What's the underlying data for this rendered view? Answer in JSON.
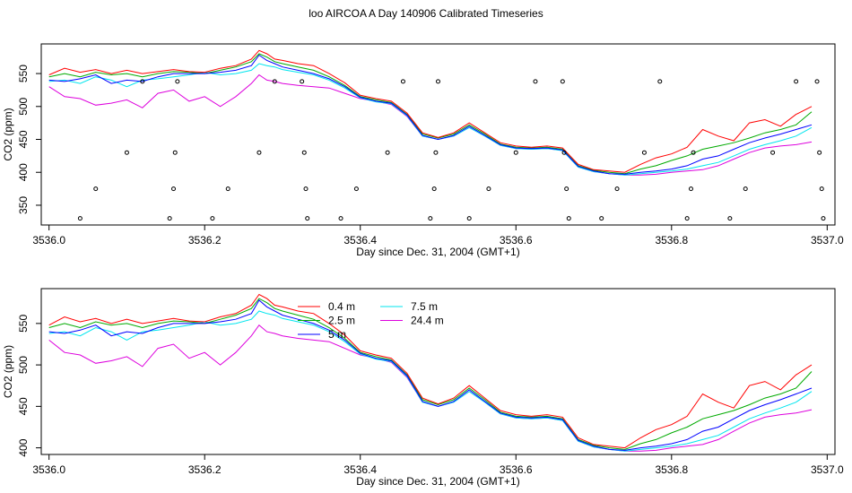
{
  "figure": {
    "title": "loo AIRCOA A  Day 140906  Calibrated Timeseries"
  },
  "colors": {
    "0.4 m": "#ff0000",
    "2.5 m": "#00aa00",
    "5 m": "#0000ff",
    "7.5 m": "#00e5ee",
    "24.4 m": "#dd00dd"
  },
  "chart_data": [
    {
      "type": "line",
      "xlabel": "Day since Dec. 31, 2004 (GMT+1)",
      "ylabel": "CO2 (ppm)",
      "xlim": [
        3535.99,
        3537.01
      ],
      "ylim": [
        320,
        595
      ],
      "xticks": [
        3536.0,
        3536.2,
        3536.4,
        3536.6,
        3536.8,
        3537.0
      ],
      "xtick_labels": [
        "3536.0",
        "3536.2",
        "3536.4",
        "3536.6",
        "3536.8",
        "3537.0"
      ],
      "yticks": [
        350,
        400,
        450,
        500,
        550
      ],
      "ytick_labels": [
        "350",
        "400",
        "450",
        "500",
        "550"
      ],
      "x": [
        3536.0,
        3536.02,
        3536.04,
        3536.06,
        3536.08,
        3536.1,
        3536.12,
        3536.14,
        3536.16,
        3536.18,
        3536.2,
        3536.22,
        3536.24,
        3536.26,
        3536.27,
        3536.28,
        3536.29,
        3536.3,
        3536.32,
        3536.34,
        3536.36,
        3536.38,
        3536.4,
        3536.42,
        3536.44,
        3536.46,
        3536.48,
        3536.5,
        3536.52,
        3536.54,
        3536.56,
        3536.58,
        3536.6,
        3536.62,
        3536.64,
        3536.66,
        3536.68,
        3536.7,
        3536.72,
        3536.74,
        3536.76,
        3536.78,
        3536.8,
        3536.82,
        3536.84,
        3536.86,
        3536.88,
        3536.9,
        3536.92,
        3536.94,
        3536.96,
        3536.98
      ],
      "series": [
        {
          "values": [
            548,
            558,
            552,
            556,
            550,
            555,
            550,
            553,
            556,
            553,
            552,
            558,
            562,
            572,
            585,
            580,
            572,
            570,
            565,
            562,
            550,
            536,
            517,
            512,
            508,
            490,
            460,
            453,
            460,
            475,
            460,
            445,
            440,
            438,
            440,
            437,
            412,
            404,
            402,
            400,
            412,
            422,
            428,
            438,
            465,
            455,
            448,
            475,
            480,
            470,
            488,
            500
          ]
        },
        {
          "values": [
            545,
            550,
            545,
            552,
            548,
            550,
            545,
            550,
            553,
            552,
            550,
            555,
            560,
            568,
            580,
            575,
            568,
            565,
            560,
            555,
            545,
            532,
            515,
            510,
            506,
            488,
            458,
            452,
            458,
            472,
            458,
            443,
            438,
            437,
            438,
            435,
            410,
            403,
            400,
            398,
            405,
            410,
            418,
            425,
            435,
            440,
            445,
            452,
            460,
            465,
            472,
            492
          ]
        },
        {
          "values": [
            540,
            538,
            542,
            548,
            535,
            540,
            538,
            545,
            550,
            550,
            550,
            552,
            555,
            562,
            578,
            570,
            565,
            560,
            555,
            550,
            542,
            530,
            514,
            508,
            505,
            487,
            456,
            450,
            456,
            470,
            456,
            442,
            437,
            436,
            437,
            434,
            409,
            402,
            398,
            397,
            400,
            402,
            405,
            410,
            420,
            425,
            435,
            445,
            452,
            458,
            465,
            472
          ]
        },
        {
          "values": [
            538,
            540,
            535,
            545,
            540,
            530,
            540,
            542,
            545,
            548,
            552,
            548,
            550,
            555,
            565,
            562,
            560,
            556,
            552,
            548,
            540,
            528,
            513,
            507,
            504,
            486,
            455,
            450,
            455,
            468,
            455,
            441,
            436,
            435,
            436,
            433,
            408,
            401,
            398,
            396,
            398,
            400,
            402,
            405,
            410,
            415,
            425,
            435,
            442,
            448,
            455,
            468
          ]
        },
        {
          "values": [
            530,
            515,
            512,
            502,
            505,
            510,
            498,
            520,
            525,
            508,
            515,
            500,
            515,
            535,
            548,
            540,
            538,
            535,
            532,
            530,
            528,
            520,
            512,
            508,
            503,
            485,
            455,
            450,
            455,
            468,
            455,
            441,
            436,
            435,
            436,
            433,
            408,
            401,
            398,
            396,
            396,
            397,
            400,
            402,
            404,
            410,
            420,
            430,
            437,
            440,
            442,
            446
          ]
        }
      ],
      "points": {
        "x": [
          3536.04,
          3536.06,
          3536.1,
          3536.12,
          3536.155,
          3536.16,
          3536.162,
          3536.165,
          3536.21,
          3536.23,
          3536.27,
          3536.29,
          3536.325,
          3536.328,
          3536.33,
          3536.332,
          3536.375,
          3536.395,
          3536.435,
          3536.455,
          3536.49,
          3536.495,
          3536.497,
          3536.5,
          3536.54,
          3536.565,
          3536.6,
          3536.625,
          3536.66,
          3536.662,
          3536.665,
          3536.668,
          3536.71,
          3536.73,
          3536.765,
          3536.785,
          3536.82,
          3536.825,
          3536.828,
          3536.875,
          3536.895,
          3536.93,
          3536.96,
          3536.987,
          3536.99,
          3536.993,
          3536.995
        ],
        "y": [
          330,
          375,
          430,
          538,
          330,
          375,
          430,
          538,
          330,
          375,
          430,
          538,
          538,
          430,
          375,
          330,
          330,
          375,
          430,
          538,
          330,
          375,
          430,
          538,
          330,
          375,
          430,
          538,
          538,
          430,
          375,
          330,
          330,
          375,
          430,
          538,
          330,
          375,
          430,
          330,
          375,
          430,
          538,
          538,
          430,
          375,
          330
        ]
      }
    },
    {
      "type": "line",
      "xlabel": "Day since Dec. 31, 2004 (GMT+1)",
      "ylabel": "CO2 (ppm)",
      "xlim": [
        3535.99,
        3537.01
      ],
      "ylim": [
        392,
        592
      ],
      "xticks": [
        3536.0,
        3536.2,
        3536.4,
        3536.6,
        3536.8,
        3537.0
      ],
      "xtick_labels": [
        "3536.0",
        "3536.2",
        "3536.4",
        "3536.6",
        "3536.8",
        "3537.0"
      ],
      "yticks": [
        400,
        450,
        500,
        550
      ],
      "ytick_labels": [
        "400",
        "450",
        "500",
        "550"
      ],
      "legend": {
        "position": "top-left",
        "labels": [
          "0.4 m",
          "2.5 m",
          "5 m",
          "7.5 m",
          "24.4 m"
        ]
      },
      "x": [
        3536.0,
        3536.02,
        3536.04,
        3536.06,
        3536.08,
        3536.1,
        3536.12,
        3536.14,
        3536.16,
        3536.18,
        3536.2,
        3536.22,
        3536.24,
        3536.26,
        3536.27,
        3536.28,
        3536.29,
        3536.3,
        3536.32,
        3536.34,
        3536.36,
        3536.38,
        3536.4,
        3536.42,
        3536.44,
        3536.46,
        3536.48,
        3536.5,
        3536.52,
        3536.54,
        3536.56,
        3536.58,
        3536.6,
        3536.62,
        3536.64,
        3536.66,
        3536.68,
        3536.7,
        3536.72,
        3536.74,
        3536.76,
        3536.78,
        3536.8,
        3536.82,
        3536.84,
        3536.86,
        3536.88,
        3536.9,
        3536.92,
        3536.94,
        3536.96,
        3536.98
      ],
      "series": [
        {
          "name": "0.4 m",
          "values": [
            548,
            558,
            552,
            556,
            550,
            555,
            550,
            553,
            556,
            553,
            552,
            558,
            562,
            572,
            585,
            580,
            572,
            570,
            565,
            562,
            550,
            536,
            517,
            512,
            508,
            490,
            460,
            453,
            460,
            475,
            460,
            445,
            440,
            438,
            440,
            437,
            412,
            404,
            402,
            400,
            412,
            422,
            428,
            438,
            465,
            455,
            448,
            475,
            480,
            470,
            488,
            500
          ]
        },
        {
          "name": "2.5 m",
          "values": [
            545,
            550,
            545,
            552,
            548,
            550,
            545,
            550,
            553,
            552,
            550,
            555,
            560,
            568,
            580,
            575,
            568,
            565,
            560,
            555,
            545,
            532,
            515,
            510,
            506,
            488,
            458,
            452,
            458,
            472,
            458,
            443,
            438,
            437,
            438,
            435,
            410,
            403,
            400,
            398,
            405,
            410,
            418,
            425,
            435,
            440,
            445,
            452,
            460,
            465,
            472,
            492
          ]
        },
        {
          "name": "5 m",
          "values": [
            540,
            538,
            542,
            548,
            535,
            540,
            538,
            545,
            550,
            550,
            550,
            552,
            555,
            562,
            578,
            570,
            565,
            560,
            555,
            550,
            542,
            530,
            514,
            508,
            505,
            487,
            456,
            450,
            456,
            470,
            456,
            442,
            437,
            436,
            437,
            434,
            409,
            402,
            398,
            397,
            400,
            402,
            405,
            410,
            420,
            425,
            435,
            445,
            452,
            458,
            465,
            472
          ]
        },
        {
          "name": "7.5 m",
          "values": [
            538,
            540,
            535,
            545,
            540,
            530,
            540,
            542,
            545,
            548,
            552,
            548,
            550,
            555,
            565,
            562,
            560,
            556,
            552,
            548,
            540,
            528,
            513,
            507,
            504,
            486,
            455,
            450,
            455,
            468,
            455,
            441,
            436,
            435,
            436,
            433,
            408,
            401,
            398,
            396,
            398,
            400,
            402,
            405,
            410,
            415,
            425,
            435,
            442,
            448,
            455,
            468
          ]
        },
        {
          "name": "24.4 m",
          "values": [
            530,
            515,
            512,
            502,
            505,
            510,
            498,
            520,
            525,
            508,
            515,
            500,
            515,
            535,
            548,
            540,
            538,
            535,
            532,
            530,
            528,
            520,
            512,
            508,
            503,
            485,
            455,
            450,
            455,
            468,
            455,
            441,
            436,
            435,
            436,
            433,
            408,
            401,
            398,
            396,
            396,
            397,
            400,
            402,
            404,
            410,
            420,
            430,
            437,
            440,
            442,
            446
          ]
        }
      ]
    }
  ]
}
